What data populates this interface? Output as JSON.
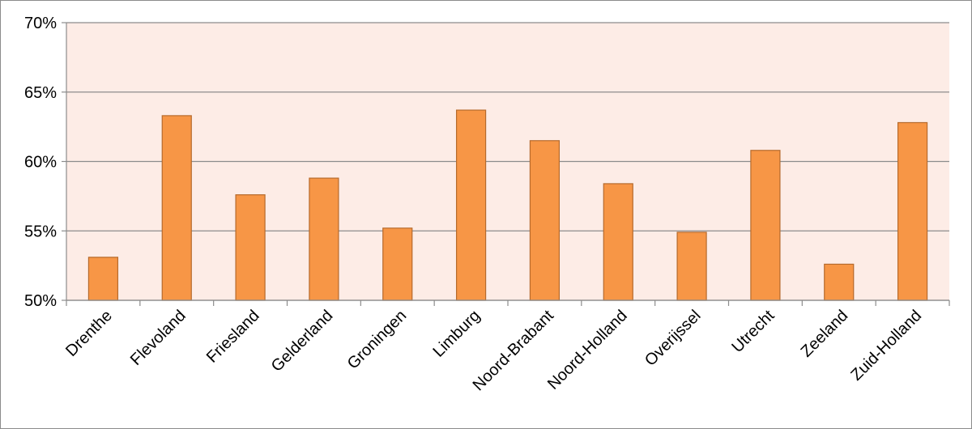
{
  "chart_data": {
    "type": "bar",
    "title": "",
    "xlabel": "",
    "ylabel": "",
    "categories": [
      "Drenthe",
      "Flevoland",
      "Friesland",
      "Gelderland",
      "Groningen",
      "Limburg",
      "Noord-Brabant",
      "Noord-Holland",
      "Overijssel",
      "Utrecht",
      "Zeeland",
      "Zuid-Holland"
    ],
    "values": [
      53.1,
      63.3,
      57.6,
      58.8,
      55.2,
      63.7,
      61.5,
      58.4,
      54.9,
      60.8,
      52.6,
      62.8
    ],
    "ylim": [
      50,
      70
    ],
    "yticks": [
      "50%",
      "55%",
      "60%",
      "65%",
      "70%"
    ],
    "ytick_values": [
      50,
      55,
      60,
      65,
      70
    ],
    "grid": true,
    "colors": {
      "bar_fill": "#F79646",
      "bar_stroke": "#B66A2C",
      "plot_background": "#FDECE6",
      "gridline": "#8C8C8C"
    }
  }
}
